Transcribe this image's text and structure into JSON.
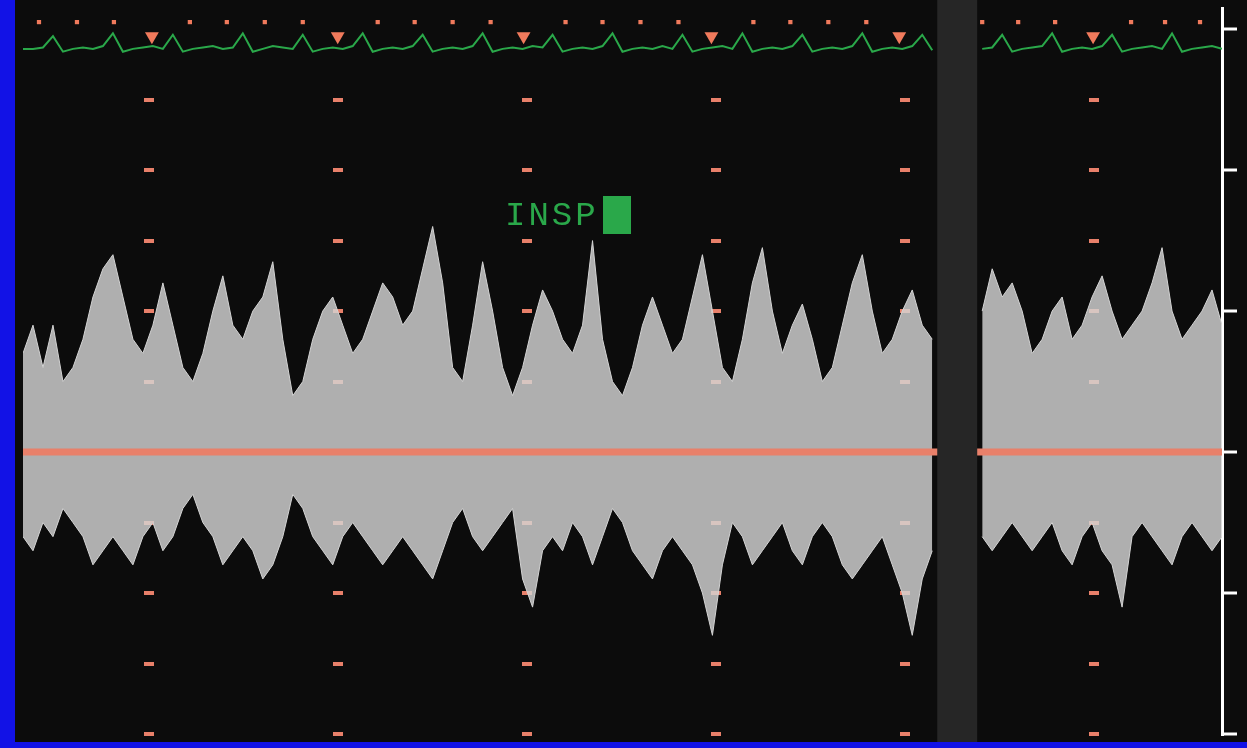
{
  "chart_data": {
    "type": "line",
    "annotation": "INSP",
    "xlim": [
      0,
      120
    ],
    "ylim": [
      -2,
      3.15
    ],
    "yticks": [
      -2,
      -1.5,
      -1,
      -0.5,
      0,
      0.5,
      1,
      1.5,
      2,
      2.5,
      3
    ],
    "tick_labels": false,
    "grid": true,
    "x": [
      0,
      1,
      2,
      3,
      4,
      5,
      6,
      7,
      8,
      9,
      10,
      11,
      12,
      13,
      14,
      15,
      16,
      17,
      18,
      19,
      20,
      21,
      22,
      23,
      24,
      25,
      26,
      27,
      28,
      29,
      30,
      31,
      32,
      33,
      34,
      35,
      36,
      37,
      38,
      39,
      40,
      41,
      42,
      43,
      44,
      45,
      46,
      47,
      48,
      49,
      50,
      51,
      52,
      53,
      54,
      55,
      56,
      57,
      58,
      59,
      60,
      61,
      62,
      63,
      64,
      65,
      66,
      67,
      68,
      69,
      70,
      71,
      72,
      73,
      74,
      75,
      76,
      77,
      78,
      79,
      80,
      81,
      82,
      83,
      84,
      85,
      86,
      87,
      88,
      89,
      90,
      91,
      92,
      93,
      94,
      95,
      96,
      97,
      98,
      99,
      100,
      101,
      102,
      103,
      104,
      105,
      106,
      107,
      108,
      109,
      110,
      111,
      112,
      113,
      114,
      115,
      116,
      117,
      118,
      119,
      120
    ],
    "series": [
      {
        "type": "area",
        "color": "#d4d4d4",
        "values": [
          0.7,
          0.9,
          0.6,
          0.9,
          0.5,
          0.6,
          0.8,
          1.1,
          1.3,
          1.4,
          1.1,
          0.8,
          0.7,
          0.9,
          1.2,
          0.9,
          0.6,
          0.5,
          0.7,
          1.0,
          1.25,
          0.9,
          0.8,
          1.0,
          1.1,
          1.35,
          0.8,
          0.4,
          0.5,
          0.8,
          1.0,
          1.1,
          0.9,
          0.7,
          0.8,
          1.0,
          1.2,
          1.1,
          0.9,
          1.0,
          1.3,
          1.6,
          1.2,
          0.6,
          0.5,
          0.9,
          1.35,
          1.0,
          0.6,
          0.4,
          0.6,
          0.9,
          1.15,
          1.0,
          0.8,
          0.7,
          0.9,
          1.5,
          0.8,
          0.5,
          0.4,
          0.6,
          0.9,
          1.1,
          0.9,
          0.7,
          0.8,
          1.1,
          1.4,
          1.0,
          0.6,
          0.5,
          0.8,
          1.2,
          1.45,
          1.0,
          0.7,
          0.9,
          1.05,
          0.8,
          0.5,
          0.6,
          0.9,
          1.2,
          1.4,
          1.0,
          0.7,
          0.8,
          1.0,
          1.15,
          0.9,
          0.8,
          null,
          null,
          null,
          null,
          1.0,
          1.3,
          1.1,
          1.2,
          1.0,
          0.7,
          0.8,
          1.0,
          1.1,
          0.8,
          0.9,
          1.1,
          1.25,
          1.0,
          0.8,
          0.9,
          1.0,
          1.2,
          1.45,
          1.0,
          0.8,
          0.9,
          1.0,
          1.15,
          0.9
        ]
      },
      {
        "type": "area",
        "color": "#d4d4d4",
        "values": [
          -0.6,
          -0.7,
          -0.5,
          -0.6,
          -0.4,
          -0.5,
          -0.6,
          -0.8,
          -0.7,
          -0.6,
          -0.7,
          -0.8,
          -0.6,
          -0.5,
          -0.7,
          -0.6,
          -0.4,
          -0.3,
          -0.5,
          -0.6,
          -0.8,
          -0.7,
          -0.6,
          -0.7,
          -0.9,
          -0.8,
          -0.6,
          -0.3,
          -0.4,
          -0.6,
          -0.7,
          -0.8,
          -0.6,
          -0.5,
          -0.6,
          -0.7,
          -0.8,
          -0.7,
          -0.6,
          -0.7,
          -0.8,
          -0.9,
          -0.7,
          -0.5,
          -0.4,
          -0.6,
          -0.7,
          -0.6,
          -0.5,
          -0.4,
          -0.9,
          -1.1,
          -0.7,
          -0.6,
          -0.7,
          -0.5,
          -0.6,
          -0.8,
          -0.6,
          -0.4,
          -0.5,
          -0.7,
          -0.8,
          -0.9,
          -0.7,
          -0.6,
          -0.7,
          -0.8,
          -1.0,
          -1.3,
          -0.8,
          -0.5,
          -0.6,
          -0.8,
          -0.7,
          -0.6,
          -0.5,
          -0.7,
          -0.8,
          -0.6,
          -0.5,
          -0.6,
          -0.8,
          -0.9,
          -0.8,
          -0.7,
          -0.6,
          -0.8,
          -1.0,
          -1.3,
          -0.9,
          -0.7,
          null,
          null,
          null,
          null,
          -0.6,
          -0.7,
          -0.6,
          -0.5,
          -0.6,
          -0.7,
          -0.6,
          -0.5,
          -0.7,
          -0.8,
          -0.6,
          -0.5,
          -0.7,
          -0.8,
          -1.1,
          -0.6,
          -0.5,
          -0.6,
          -0.7,
          -0.8,
          -0.6,
          -0.5,
          -0.6,
          -0.7,
          -0.6
        ]
      },
      {
        "type": "line",
        "color": "#2aa84a",
        "values": [
          2.86,
          2.86,
          2.87,
          2.95,
          2.84,
          2.86,
          2.87,
          2.86,
          2.88,
          2.97,
          2.84,
          2.86,
          2.87,
          2.88,
          2.86,
          2.96,
          2.84,
          2.86,
          2.87,
          2.88,
          2.86,
          2.87,
          2.97,
          2.84,
          2.86,
          2.88,
          2.87,
          2.86,
          2.96,
          2.84,
          2.86,
          2.87,
          2.86,
          2.88,
          2.97,
          2.84,
          2.86,
          2.87,
          2.86,
          2.88,
          2.96,
          2.84,
          2.86,
          2.87,
          2.86,
          2.88,
          2.97,
          2.84,
          2.86,
          2.87,
          2.86,
          2.88,
          2.87,
          2.96,
          2.84,
          2.86,
          2.87,
          2.86,
          2.88,
          2.97,
          2.84,
          2.86,
          2.87,
          2.86,
          2.88,
          2.86,
          2.96,
          2.84,
          2.86,
          2.87,
          2.88,
          2.86,
          2.97,
          2.84,
          2.86,
          2.87,
          2.86,
          2.88,
          2.96,
          2.84,
          2.86,
          2.87,
          2.86,
          2.88,
          2.97,
          2.84,
          2.86,
          2.87,
          2.86,
          2.88,
          2.96,
          2.85,
          null,
          null,
          null,
          null,
          2.86,
          2.87,
          2.96,
          2.84,
          2.86,
          2.87,
          2.88,
          2.97,
          2.84,
          2.86,
          2.87,
          2.86,
          2.88,
          2.96,
          2.84,
          2.86,
          2.87,
          2.88,
          2.86,
          2.97,
          2.84,
          2.86,
          2.87,
          2.88,
          2.86
        ]
      },
      {
        "type": "scatter",
        "marker": "triangle",
        "color": "#f07a5c",
        "x": [
          12.9,
          31.5,
          50.1,
          68.9,
          87.7,
          107.1
        ],
        "values": [
          2.95,
          2.95,
          2.95,
          2.95,
          2.95,
          2.95
        ]
      },
      {
        "type": "scatter",
        "marker": "square",
        "color": "#f07a5c",
        "x": [
          1.6,
          5.4,
          9.1,
          16.7,
          20.4,
          24.2,
          28.0,
          35.5,
          39.2,
          43.0,
          46.8,
          54.3,
          58.0,
          61.8,
          65.6,
          73.1,
          76.8,
          80.6,
          84.4,
          96.0,
          99.6,
          103.3,
          110.9,
          114.3,
          117.8
        ],
        "values": [
          3.05,
          3.05,
          3.05,
          3.05,
          3.05,
          3.05,
          3.05,
          3.05,
          3.05,
          3.05,
          3.05,
          3.05,
          3.05,
          3.05,
          3.05,
          3.05,
          3.05,
          3.05,
          3.05,
          3.05,
          3.05,
          3.05,
          3.05,
          3.05,
          3.05
        ]
      }
    ]
  }
}
